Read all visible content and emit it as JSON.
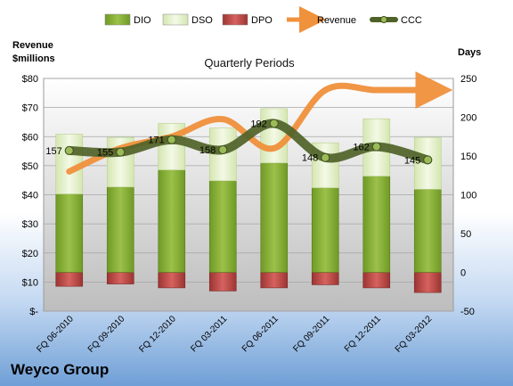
{
  "chart_data": {
    "type": "bar",
    "title": "Quarterly Periods",
    "company": "Weyco Group",
    "left_axis_label": [
      "Revenue",
      "$millions"
    ],
    "right_axis_label": "Days",
    "left_ticks": [
      "$-",
      "$10",
      "$20",
      "$30",
      "$40",
      "$50",
      "$60",
      "$70",
      "$80"
    ],
    "right_ticks": [
      "-50",
      "0",
      "50",
      "100",
      "150",
      "200",
      "250"
    ],
    "left_ylim": [
      0,
      80
    ],
    "right_ylim": [
      -50,
      250
    ],
    "categories": [
      "FQ 06-2010",
      "FQ 09-2010",
      "FQ 12-2010",
      "FQ 03-2011",
      "FQ 06-2011",
      "FQ 09-2011",
      "FQ 12-2011",
      "FQ 03-2012"
    ],
    "series": [
      {
        "name": "DIO",
        "axis": "right",
        "color": "#8db33a",
        "values": [
          101,
          110,
          132,
          118,
          141,
          109,
          124,
          107
        ]
      },
      {
        "name": "DSO",
        "axis": "right",
        "color": "#e3efc8",
        "values": [
          77,
          64,
          60,
          68,
          70,
          58,
          74,
          67
        ]
      },
      {
        "name": "DPO",
        "axis": "right",
        "color": "#c0504d",
        "values": [
          -18,
          -15,
          -20,
          -24,
          -20,
          -16,
          -20,
          -26
        ]
      },
      {
        "name": "Revenue",
        "axis": "left",
        "color": "#f0913c",
        "values": [
          48,
          56,
          60,
          66,
          56,
          76,
          76,
          76
        ]
      },
      {
        "name": "CCC",
        "axis": "right",
        "color": "#4f6228",
        "values": [
          157,
          155,
          171,
          158,
          192,
          148,
          162,
          145
        ]
      }
    ],
    "ccc_labels": [
      "157",
      "155",
      "171",
      "158",
      "192",
      "148",
      "162",
      "145"
    ],
    "legend": {
      "position": "top",
      "items": [
        "DIO",
        "DSO",
        "DPO",
        "Revenue",
        "CCC"
      ]
    },
    "grid": true
  }
}
